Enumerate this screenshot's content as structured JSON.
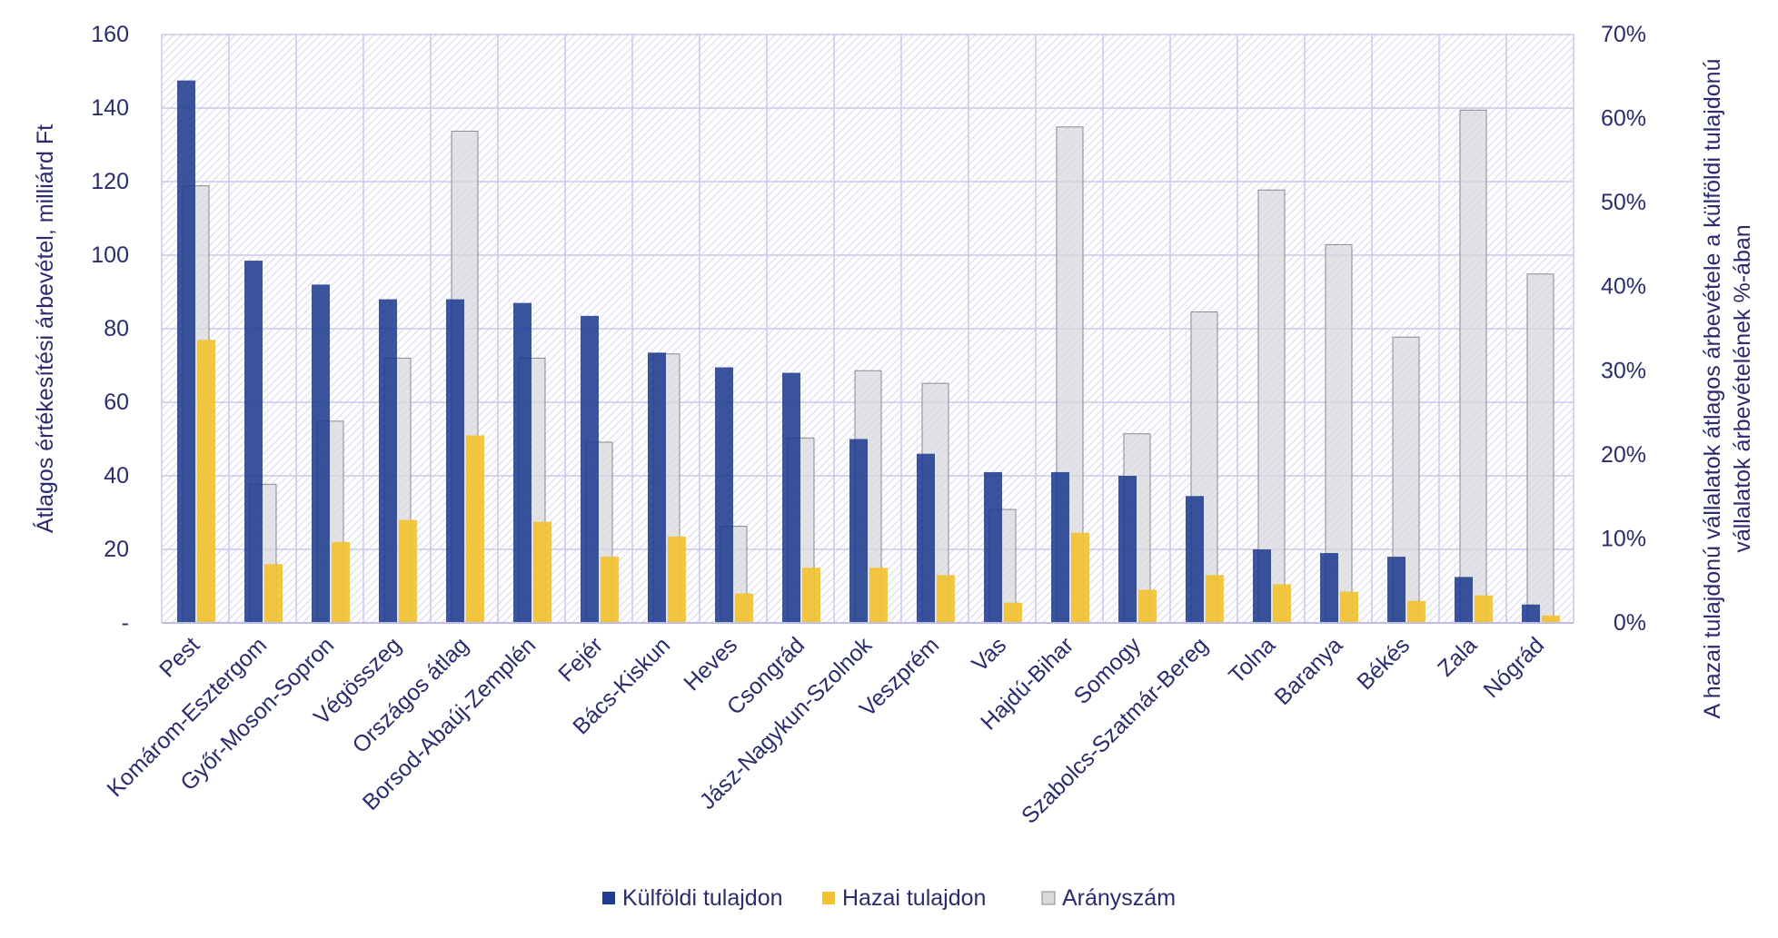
{
  "colors": {
    "foreign": "#1f3c8f",
    "domestic": "#f2c230",
    "ratio_fill": "#d9d9dd",
    "ratio_stroke": "#8a8a8a",
    "grid": "#c8c8ee",
    "text": "#2b2b6e",
    "hatch": "#d6d6f0"
  },
  "chart_data": {
    "type": "bar",
    "categories": [
      "Pest",
      "Komárom-Esztergom",
      "Győr-Moson-Sopron",
      "Végösszeg",
      "Országos átlag",
      "Borsod-Abaúj-Zemplén",
      "Fejér",
      "Bács-Kiskun",
      "Heves",
      "Csongrád",
      "Jász-Nagykun-Szolnok",
      "Veszprém",
      "Vas",
      "Hajdú-Bihar",
      "Somogy",
      "Szabolcs-Szatmár-Bereg",
      "Tolna",
      "Baranya",
      "Békés",
      "Zala",
      "Nógrád"
    ],
    "series": [
      {
        "name": "Külföldi tulajdon",
        "axis": "left",
        "values": [
          147.5,
          98.5,
          92,
          88,
          88,
          87,
          83.5,
          73.5,
          69.5,
          68,
          50,
          46,
          41,
          41,
          40,
          34.5,
          20,
          19,
          18,
          12.5,
          5
        ]
      },
      {
        "name": "Hazai tulajdon",
        "axis": "left",
        "values": [
          77,
          16,
          22,
          28,
          51,
          27.5,
          18,
          23.5,
          8,
          15,
          15,
          13,
          5.5,
          24.5,
          9,
          13,
          10.5,
          8.5,
          6,
          7.5,
          2
        ]
      },
      {
        "name": "Arányszám",
        "axis": "right",
        "values": [
          52,
          16.5,
          24,
          31.5,
          58.5,
          31.5,
          21.5,
          32,
          11.5,
          22,
          30,
          28.5,
          13.5,
          59,
          22.5,
          37,
          51.5,
          45,
          34,
          61,
          41.5
        ]
      }
    ],
    "ylim": [
      0,
      160
    ],
    "y2lim": [
      0,
      70
    ],
    "yticks": [
      "-",
      "20",
      "40",
      "60",
      "80",
      "100",
      "120",
      "140",
      "160"
    ],
    "y2ticks": [
      "0%",
      "10%",
      "20%",
      "30%",
      "40%",
      "50%",
      "60%",
      "70%"
    ],
    "ylabel": "Átlagos értékesítési árbevétel, milliárd Ft",
    "y2label_line1": "A hazai tulajdonú vállalatok átlagos árbevétele a külföldi tulajdonú",
    "y2label_line2": "vállalatok árbevételének %-ában",
    "legend": [
      "Külföldi tulajdon",
      "Hazai tulajdon",
      "Arányszám"
    ],
    "legend_position": "bottom"
  }
}
